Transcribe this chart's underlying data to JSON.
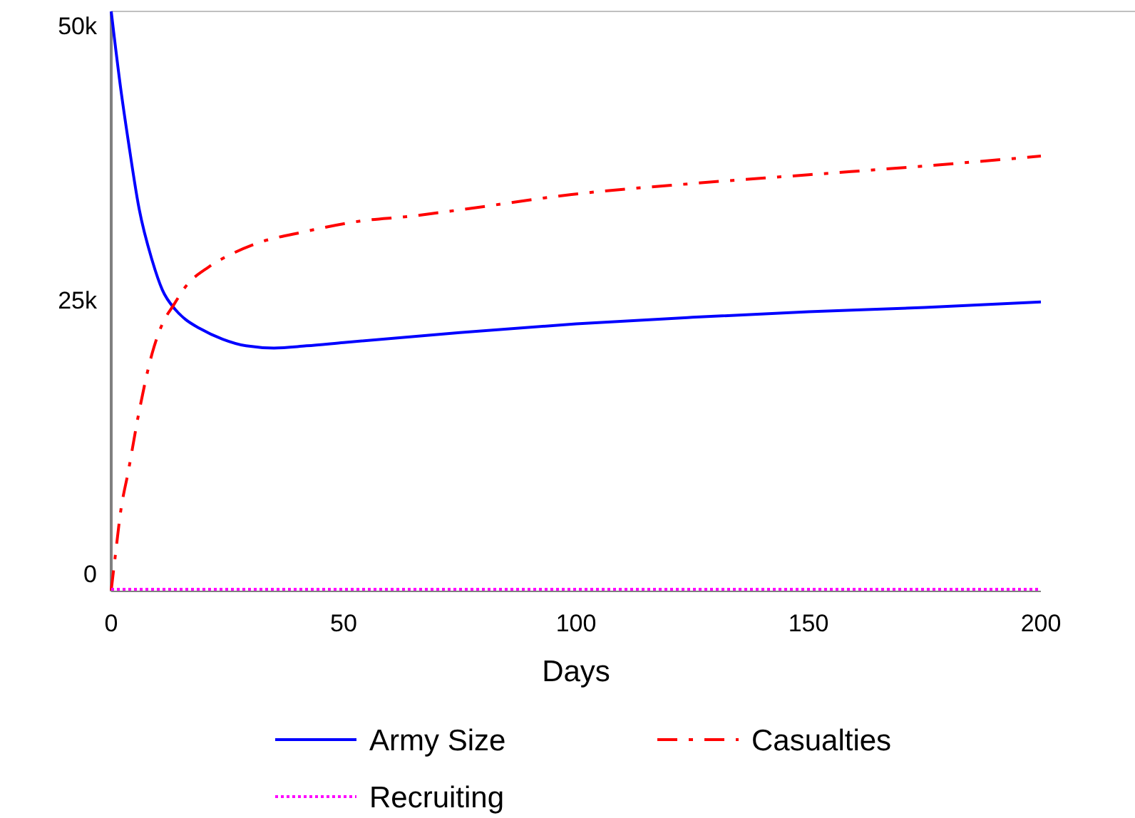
{
  "chart_data": {
    "type": "line",
    "xlabel": "Days",
    "xlim": [
      0,
      200
    ],
    "xticks": [
      0,
      50,
      100,
      150,
      200
    ],
    "ylim": [
      -1600,
      51300
    ],
    "yticks": [
      {
        "value": 0,
        "label": "0"
      },
      {
        "value": 25000,
        "label": "25k"
      },
      {
        "value": 50000,
        "label": "50k"
      }
    ],
    "grid": false,
    "legend": "bottom",
    "marker": "none",
    "series": [
      {
        "name": "Army Size",
        "color": "#0000ff",
        "line_style": "solid",
        "x": [
          0,
          2,
          3.7,
          6,
          8.8,
          11,
          13.8,
          16,
          19,
          24,
          29,
          35,
          42,
          50,
          75,
          100,
          125,
          150,
          175,
          200
        ],
        "values": [
          51300,
          44400,
          39400,
          33300,
          28600,
          25900,
          24100,
          23200,
          22400,
          21400,
          20800,
          20600,
          20800,
          21100,
          22000,
          22800,
          23400,
          23900,
          24300,
          24800
        ]
      },
      {
        "name": "Casualties",
        "color": "#ff0000",
        "line_style": "dashdot",
        "x": [
          0,
          1,
          2,
          3.7,
          6,
          8.8,
          11,
          13.4,
          16,
          21,
          26,
          31,
          41.5,
          54,
          64,
          75,
          99,
          125,
          150,
          175,
          200
        ],
        "values": [
          -1500,
          2100,
          5600,
          9400,
          14800,
          20100,
          22800,
          24500,
          26200,
          28000,
          29200,
          30100,
          31200,
          32200,
          32600,
          33200,
          34600,
          35600,
          36400,
          37200,
          38100
        ]
      },
      {
        "name": "Recruiting",
        "color": "#ff00ff",
        "line_style": "dotted",
        "x": [
          0,
          50,
          100,
          150,
          200
        ],
        "values": [
          -1400,
          -1400,
          -1400,
          -1400,
          -1400
        ]
      }
    ]
  }
}
